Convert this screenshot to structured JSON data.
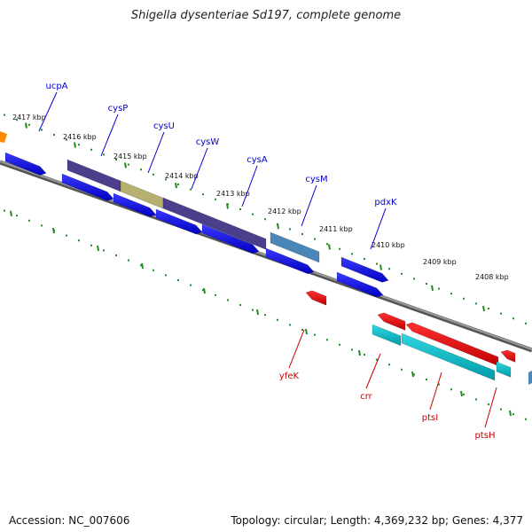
{
  "title": "Shigella dysenteriae Sd197, complete genome",
  "footer": {
    "accession": "Accession: NC_007606",
    "info": "Topology: circular; Length: 4,369,232 bp; Genes: 4,377"
  },
  "colors": {
    "backbone": "#777777",
    "tick": "#228b22",
    "forward_gene": "#0000ee",
    "reverse_gene": "#ee0000",
    "cds_band": "#4b3f8c",
    "cds_band_alt": "#b5b070",
    "cds_band_light": "#4a86b8",
    "reverse_band": "#00bcc8",
    "forward_label": "#0000cc",
    "reverse_label": "#cc0000"
  },
  "kbp_labels": [
    "2417 kbp",
    "2416 kbp",
    "2415 kbp",
    "2414 kbp",
    "2413 kbp",
    "2412 kbp",
    "2411 kbp",
    "2410 kbp",
    "2409 kbp",
    "2408 kbp"
  ],
  "forward_genes": [
    "ucpA",
    "cysP",
    "cysU",
    "cysW",
    "cysA",
    "cysM",
    "pdxK"
  ],
  "reverse_genes": [
    "yfeK",
    "crr",
    "ptsI",
    "ptsH"
  ]
}
